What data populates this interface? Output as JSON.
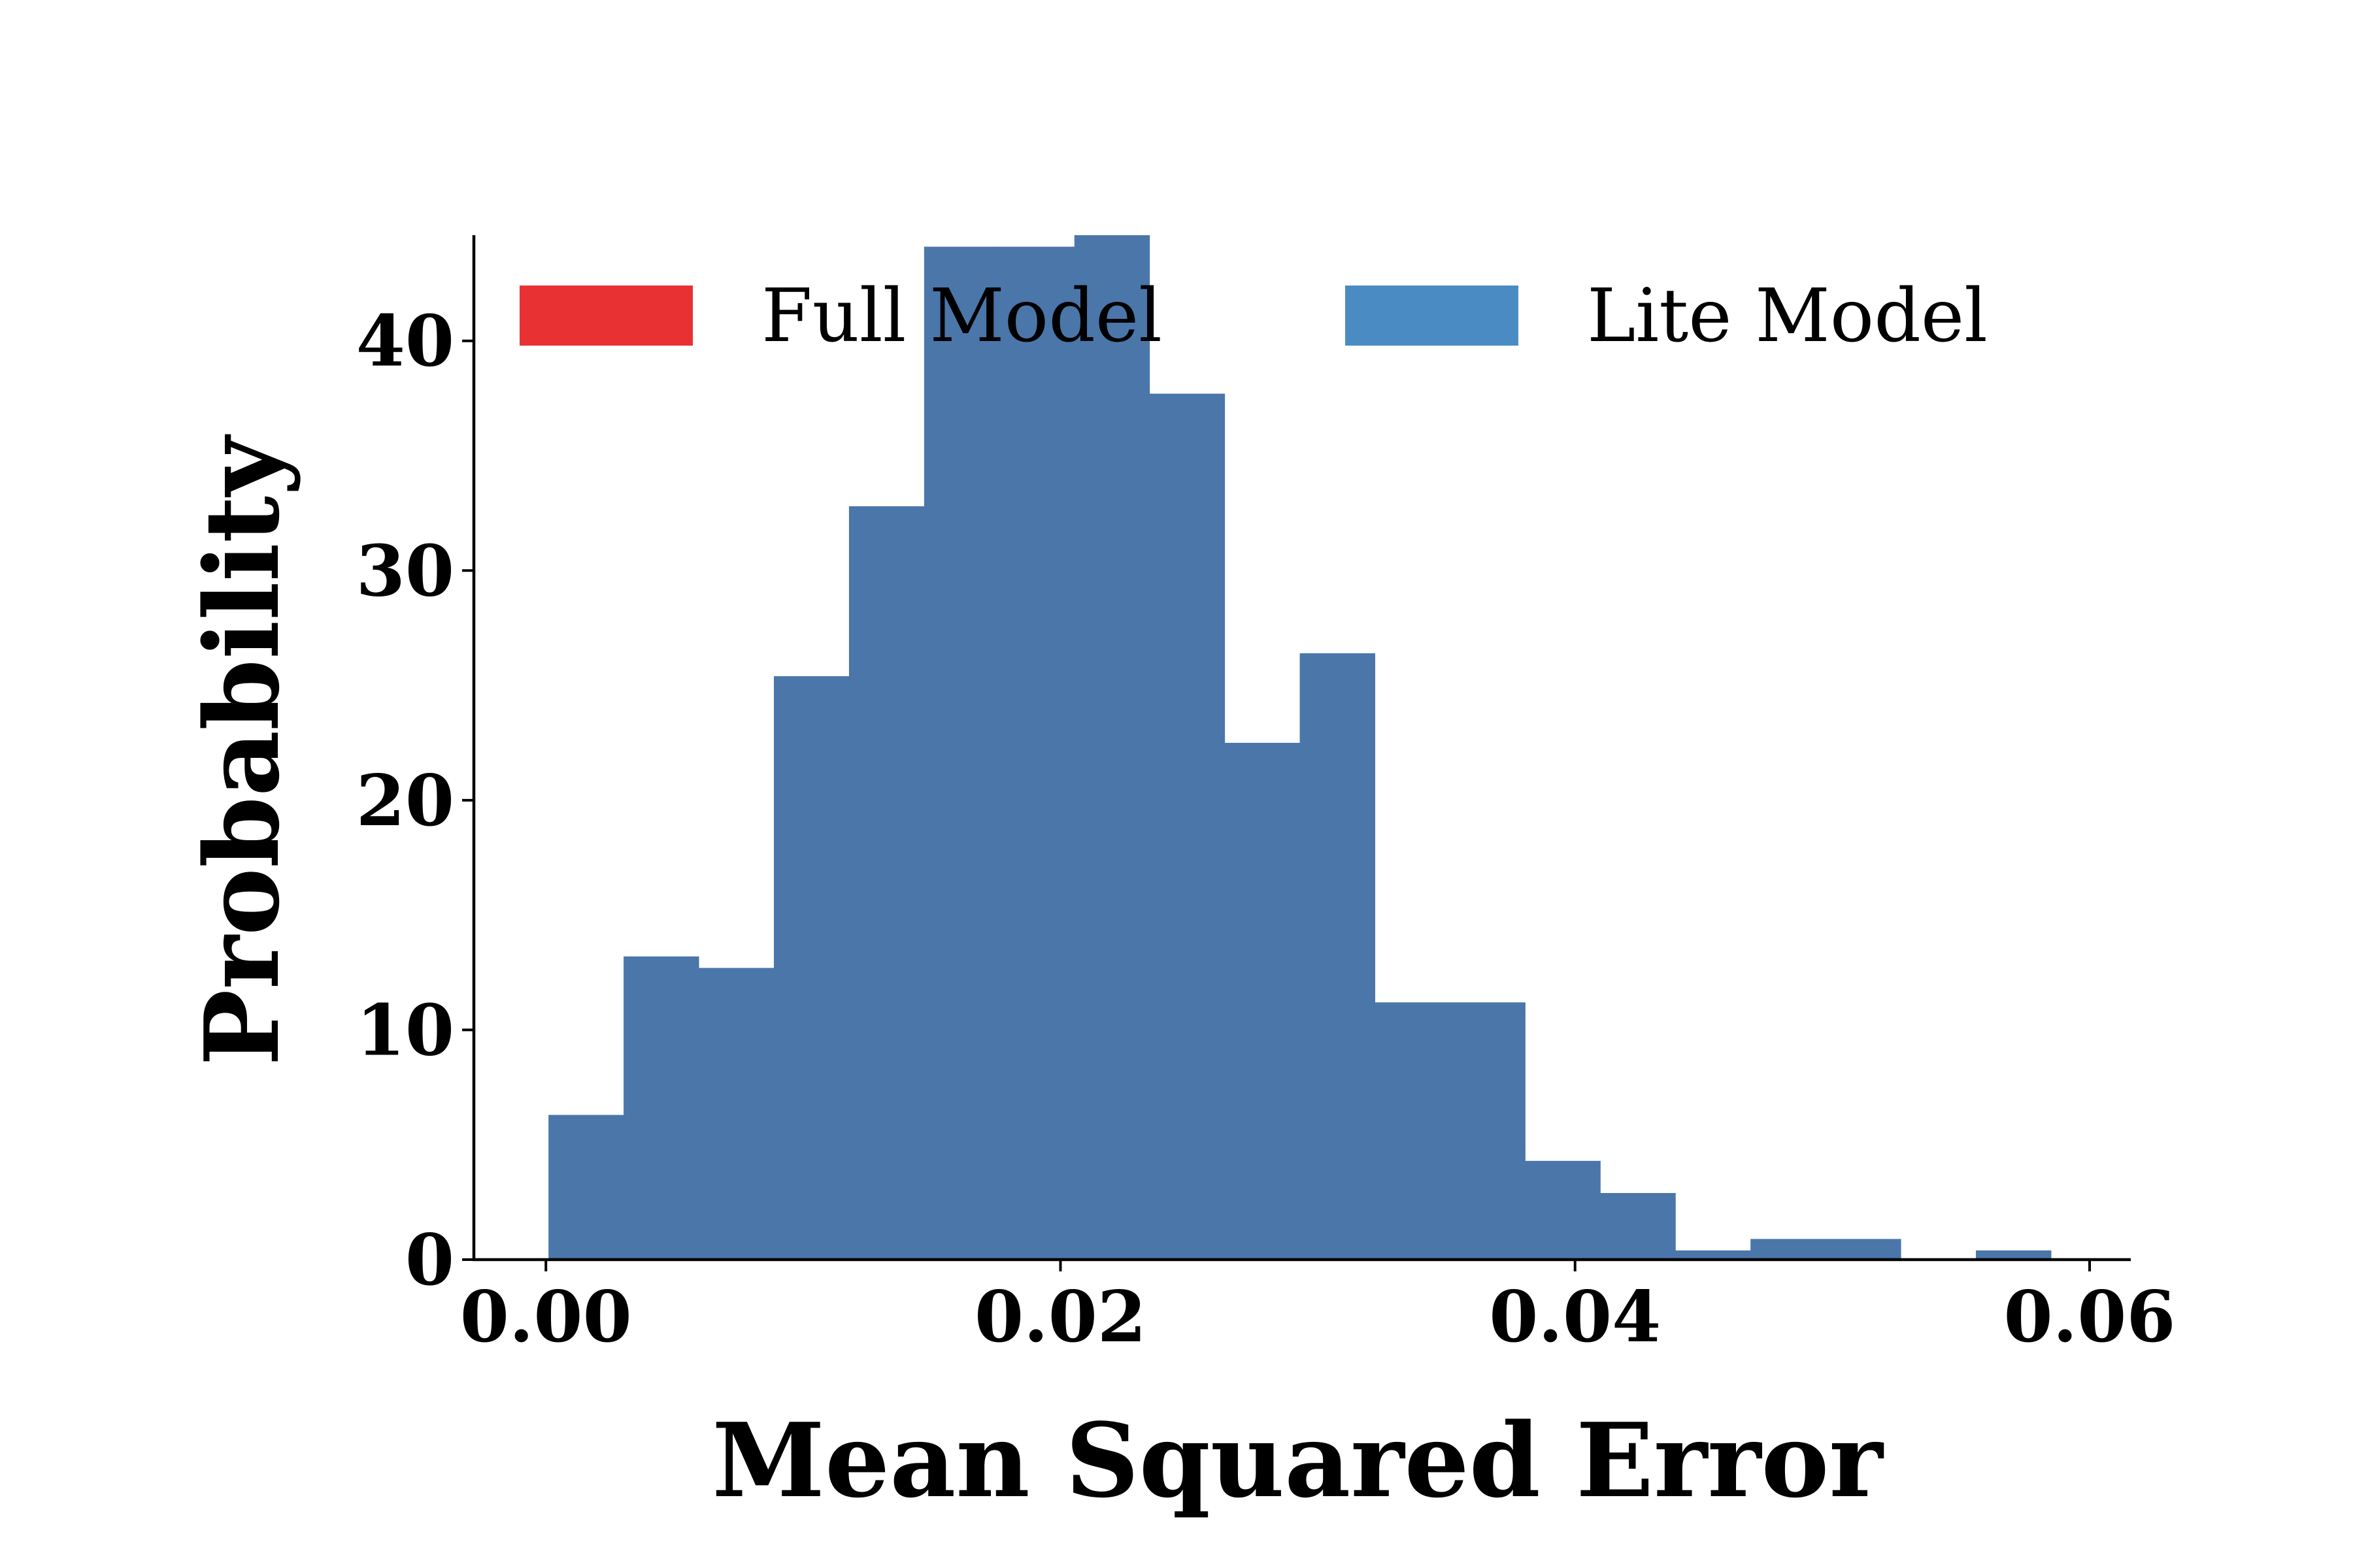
{
  "chart_data": {
    "type": "bar",
    "subtype": "histogram",
    "xlabel": "Mean Squared Error",
    "ylabel": "Probability",
    "xlim": [
      -0.0028,
      0.0616
    ],
    "ylim": [
      0,
      44.6
    ],
    "xticks": [
      0.0,
      0.02,
      0.04,
      0.06
    ],
    "xtick_labels": [
      "0.00",
      "0.02",
      "0.04",
      "0.06"
    ],
    "yticks": [
      0,
      10,
      20,
      30,
      40
    ],
    "ytick_labels": [
      "0",
      "10",
      "20",
      "30",
      "40"
    ],
    "grid": false,
    "legend": {
      "placement": "top",
      "columns": 2
    },
    "series": [
      {
        "name": "Full Model",
        "color": "#e83133",
        "bins": []
      },
      {
        "name": "Lite Model",
        "color": "#4a76aa",
        "legend_color": "#4b8bc3",
        "bin_edges": [
          0.0001,
          0.00302,
          0.00594,
          0.00886,
          0.01178,
          0.0147,
          0.01762,
          0.02054,
          0.02346,
          0.02638,
          0.0293,
          0.03222,
          0.03514,
          0.03806,
          0.04098,
          0.0439,
          0.04682,
          0.04974,
          0.05266,
          0.05558,
          0.0585
        ],
        "values": [
          6.3,
          13.2,
          12.7,
          25.4,
          32.8,
          44.1,
          44.1,
          44.6,
          37.7,
          22.5,
          26.4,
          11.2,
          11.2,
          4.3,
          2.9,
          0.4,
          0.9,
          0.9,
          0,
          0.4
        ]
      }
    ]
  }
}
